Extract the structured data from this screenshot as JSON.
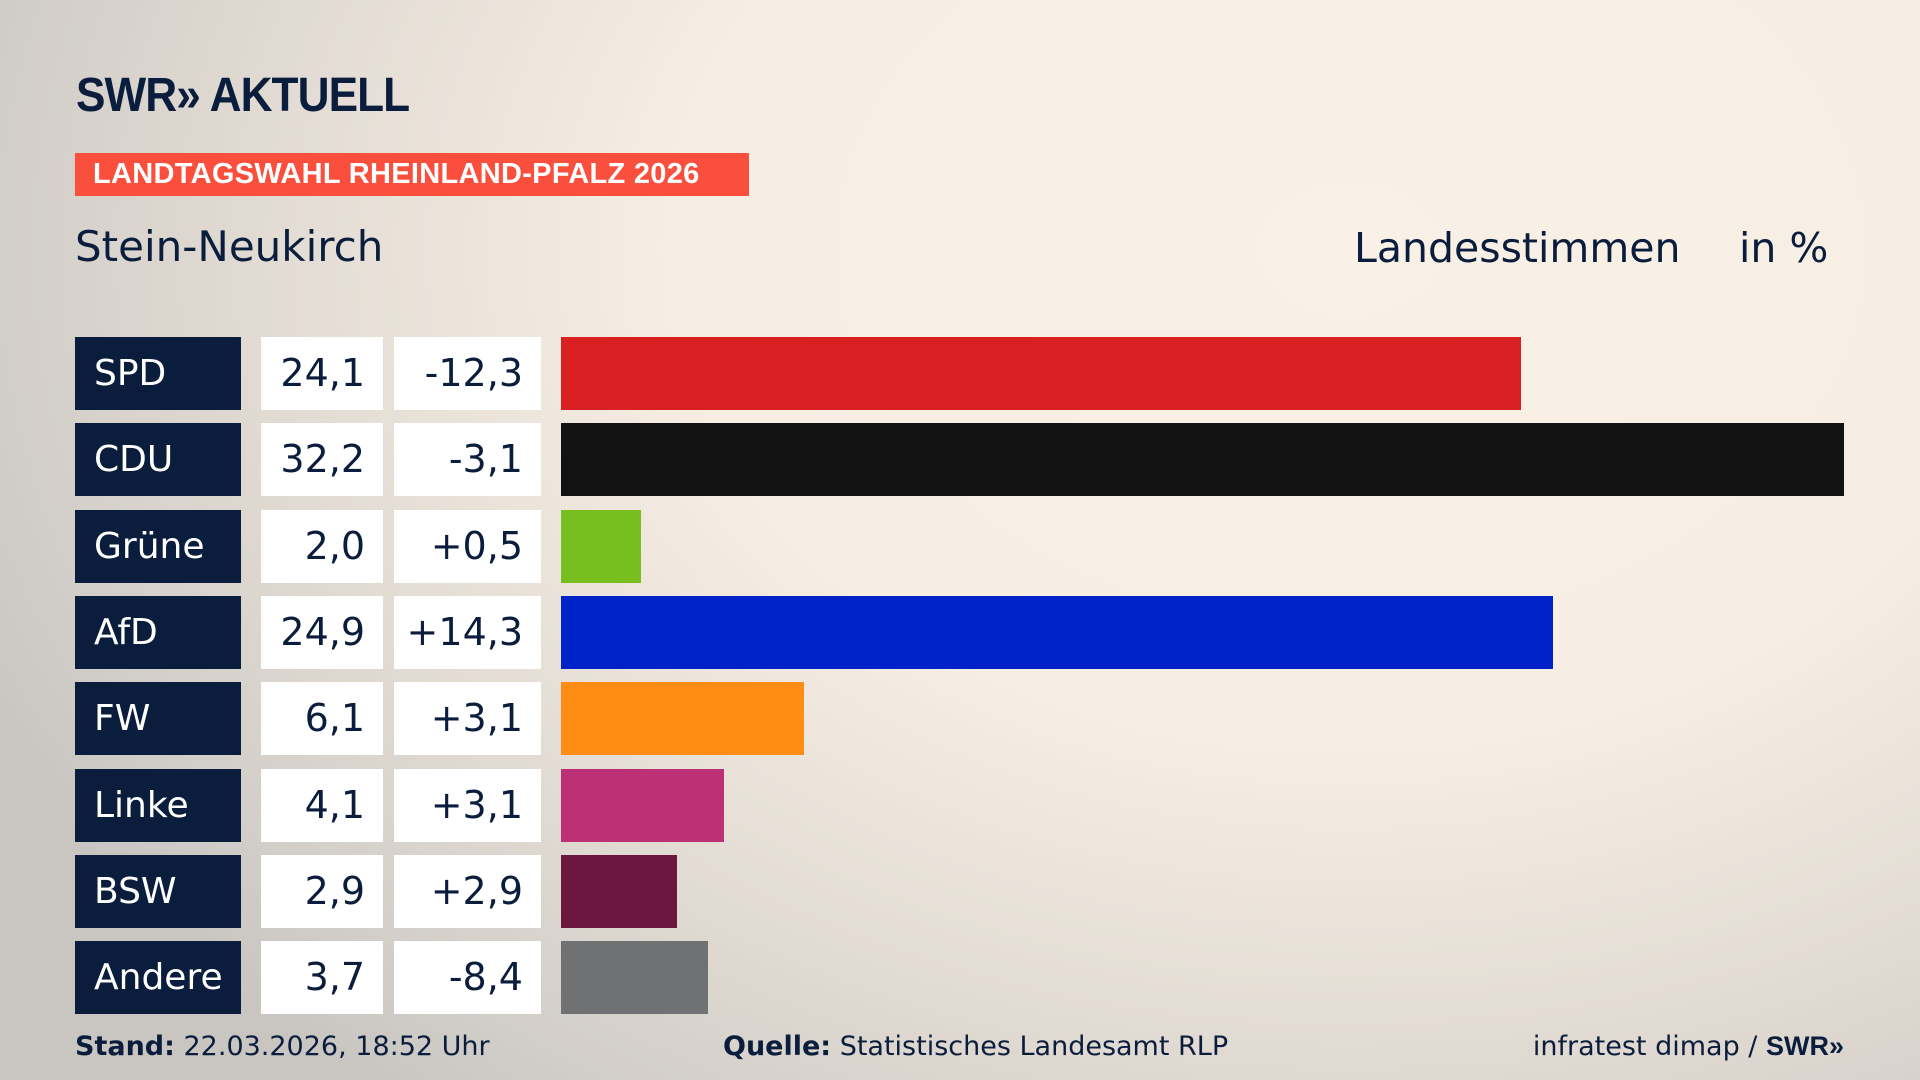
{
  "header": {
    "logo": "SWR» AKTUELL",
    "banner": "LANDTAGSWAHL RHEINLAND-PFALZ 2026",
    "region": "Stein-Neukirch",
    "label": "Landesstimmen",
    "unit": "in %"
  },
  "chart_data": {
    "type": "bar",
    "orientation": "horizontal",
    "categories": [
      "SPD",
      "CDU",
      "Grüne",
      "AfD",
      "FW",
      "Linke",
      "BSW",
      "Andere"
    ],
    "values": [
      24.1,
      32.2,
      2.0,
      24.9,
      6.1,
      4.1,
      2.9,
      3.7
    ],
    "value_labels": [
      "24,1",
      "32,2",
      "2,0",
      "24,9",
      "6,1",
      "4,1",
      "2,9",
      "3,7"
    ],
    "diff_labels": [
      "-12,3",
      "-3,1",
      "+0,5",
      "+14,3",
      "+3,1",
      "+3,1",
      "+2,9",
      "-8,4"
    ],
    "diffs": [
      -12.3,
      -3.1,
      0.5,
      14.3,
      3.1,
      3.1,
      2.9,
      -8.4
    ],
    "colors": [
      "#d91f21",
      "#121212",
      "#78be1e",
      "#0022c9",
      "#ff8c14",
      "#be3075",
      "#6b1740",
      "#707173"
    ],
    "xlim": [
      0,
      32.2
    ],
    "grid": false
  },
  "footer": {
    "stand_label": "Stand:",
    "stand": " 22.03.2026, 18:52 Uhr",
    "source_label": "Quelle:",
    "source": " Statistisches Landesamt RLP",
    "credit": "infratest dimap / ",
    "credit_logo": "SWR»"
  },
  "colors": {
    "navy": "#0b1d3c",
    "banner": "#fa4f3c"
  }
}
